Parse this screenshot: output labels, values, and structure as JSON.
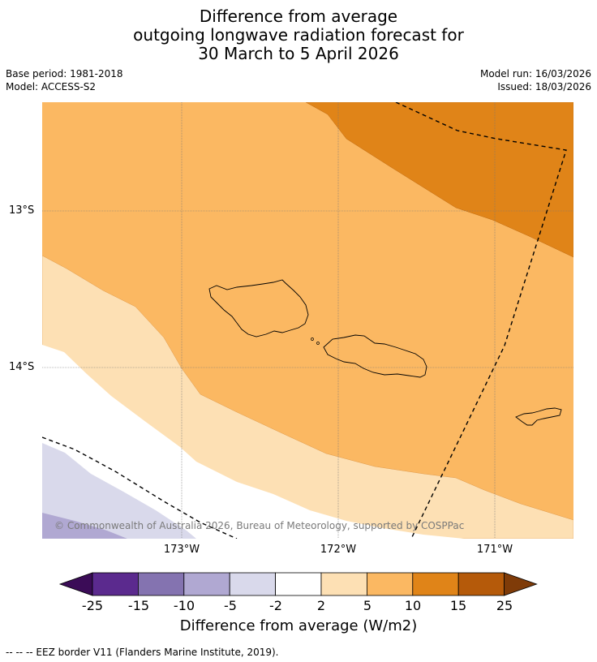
{
  "title": {
    "line1": "Difference from average",
    "line2": "outgoing longwave radiation forecast for",
    "line3": "30 March to 5 April 2026"
  },
  "meta": {
    "base_period": "Base period: 1981-2018",
    "model": "Model: ACCESS-S2",
    "model_run": "Model run: 16/03/2026",
    "issued": "Issued: 18/03/2026"
  },
  "map": {
    "lat_labels": [
      "13°S",
      "14°S"
    ],
    "lon_labels": [
      "173°W",
      "172°W",
      "171°W"
    ],
    "copyright": "© Commonwealth of Australia 2026, Bureau of Meteorology, supported by COSPPac"
  },
  "colorbar": {
    "ticks": [
      "-25",
      "-15",
      "-10",
      "-5",
      "-2",
      "2",
      "5",
      "10",
      "15",
      "25"
    ],
    "colors": [
      "#3b0c57",
      "#5b2a8e",
      "#8473b0",
      "#b0a8d2",
      "#d9d9eb",
      "#ffffff",
      "#fde0b4",
      "#fbb862",
      "#e08418",
      "#b55a0a",
      "#7f3b08"
    ],
    "label": "Difference from average (W/m2)"
  },
  "footer": {
    "legend": "--  --  -- EEZ border V11 (Flanders Marine Institute, 2019)."
  }
}
